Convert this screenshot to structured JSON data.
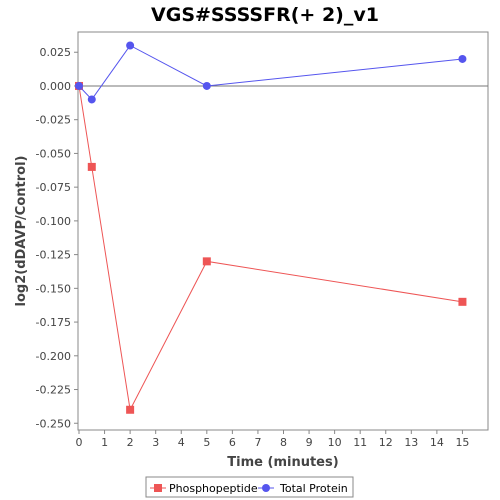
{
  "chart_data": {
    "type": "line",
    "title": "VGS#SSSSFR(+ 2)_v1",
    "xlabel": "Time (minutes)",
    "ylabel": "log2(dDAVP/Control)",
    "xlim": [
      0,
      16
    ],
    "ylim": [
      -0.255,
      0.04
    ],
    "x_ticks": [
      "0",
      "1",
      "2",
      "3",
      "4",
      "5",
      "6",
      "7",
      "8",
      "9",
      "10",
      "11",
      "12",
      "13",
      "14",
      "15"
    ],
    "y_ticks": [
      "0.025",
      "0.000",
      "-0.025",
      "-0.050",
      "-0.075",
      "-0.100",
      "-0.125",
      "-0.150",
      "-0.175",
      "-0.200",
      "-0.225",
      "-0.250"
    ],
    "grid": false,
    "legend_position": "bottom",
    "series": [
      {
        "name": "Phosphopeptide",
        "color": "#ee5555",
        "marker": "square",
        "x": [
          0,
          0.5,
          2,
          5,
          15
        ],
        "y": [
          0.0,
          -0.06,
          -0.24,
          -0.13,
          -0.16
        ]
      },
      {
        "name": "Total Protein",
        "color": "#5555ee",
        "marker": "circle",
        "x": [
          0,
          0.5,
          2,
          5,
          15
        ],
        "y": [
          0.0,
          -0.01,
          0.03,
          0.0,
          0.02
        ]
      }
    ]
  }
}
